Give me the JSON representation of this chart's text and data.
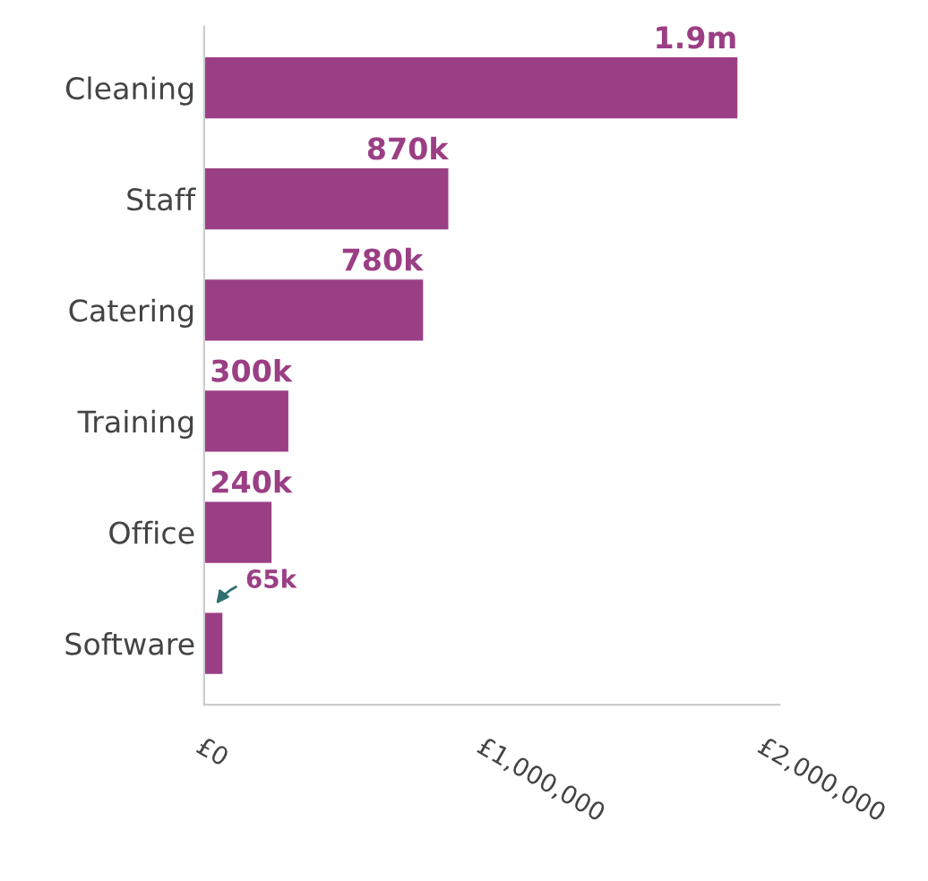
{
  "chart_data": {
    "type": "bar",
    "orientation": "horizontal",
    "categories": [
      "Cleaning",
      "Staff",
      "Catering",
      "Training",
      "Office",
      "Software"
    ],
    "values": [
      1900000,
      870000,
      780000,
      300000,
      240000,
      65000
    ],
    "value_labels": [
      "1.9m",
      "870k",
      "780k",
      "300k",
      "240k",
      "65k"
    ],
    "color": "#9b3f85",
    "xlim": [
      0,
      2050000
    ],
    "xticks": [
      {
        "value": 0,
        "label": "£0"
      },
      {
        "value": 1000000,
        "label": "£1,000,000"
      },
      {
        "value": 2000000,
        "label": "£2,000,000"
      }
    ],
    "grid": false,
    "legend": false
  }
}
